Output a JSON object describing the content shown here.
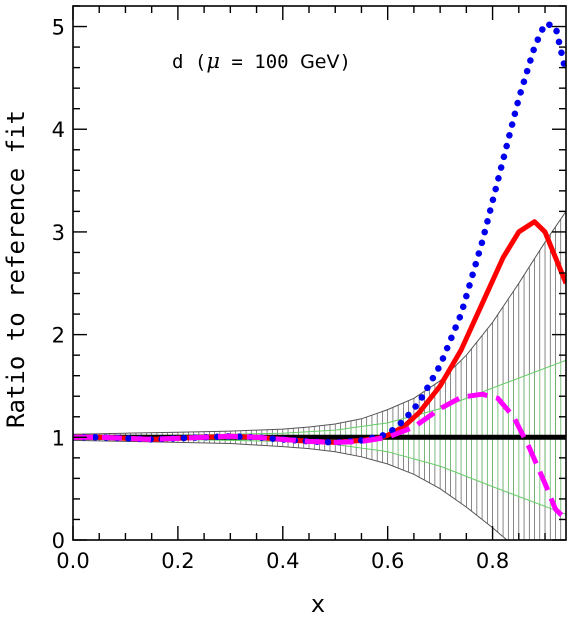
{
  "chart_data": {
    "type": "line",
    "xlabel": "x",
    "ylabel": "Ratio to reference fit",
    "annotation": {
      "prefix": "d (",
      "mu": "μ",
      "eq": " = 100 ",
      "unit": "GeV",
      "suffix": ")"
    },
    "xlim": [
      0.0,
      0.94
    ],
    "ylim": [
      0,
      5.2
    ],
    "x_ticks": [
      "0.0",
      "0.2",
      "0.4",
      "0.6",
      "0.8"
    ],
    "y_ticks": [
      "0",
      "1",
      "2",
      "3",
      "4",
      "5"
    ],
    "colors": {
      "reference": "#000000",
      "band_outer": "#555555",
      "band_inner": "#66cc66",
      "solid": "#ff0000",
      "dotted": "#0000ee",
      "dashed": "#ff00ff"
    },
    "band_outer": {
      "x": [
        0.0,
        0.1,
        0.2,
        0.3,
        0.4,
        0.45,
        0.5,
        0.55,
        0.6,
        0.65,
        0.7,
        0.75,
        0.8,
        0.85,
        0.9,
        0.94
      ],
      "upper": [
        1.03,
        1.04,
        1.05,
        1.06,
        1.08,
        1.1,
        1.13,
        1.18,
        1.27,
        1.38,
        1.55,
        1.8,
        2.12,
        2.5,
        2.9,
        3.2
      ],
      "lower": [
        0.97,
        0.96,
        0.95,
        0.94,
        0.91,
        0.89,
        0.86,
        0.81,
        0.74,
        0.64,
        0.5,
        0.32,
        0.12,
        -0.1,
        -0.3,
        -0.4
      ]
    },
    "band_inner": {
      "x": [
        0.0,
        0.2,
        0.4,
        0.5,
        0.6,
        0.7,
        0.8,
        0.94
      ],
      "upper": [
        1.01,
        1.02,
        1.04,
        1.07,
        1.14,
        1.28,
        1.48,
        1.75
      ],
      "lower": [
        0.99,
        0.98,
        0.96,
        0.93,
        0.86,
        0.72,
        0.52,
        0.25
      ]
    },
    "series": [
      {
        "style": "reference",
        "x": [
          0.0,
          0.94
        ],
        "values": [
          1.0,
          1.0
        ]
      },
      {
        "style": "solid",
        "x": [
          0.0,
          0.05,
          0.1,
          0.15,
          0.2,
          0.25,
          0.3,
          0.35,
          0.4,
          0.45,
          0.5,
          0.55,
          0.58,
          0.6,
          0.63,
          0.66,
          0.7,
          0.74,
          0.78,
          0.82,
          0.85,
          0.88,
          0.9,
          0.92,
          0.94
        ],
        "values": [
          1.0,
          1.0,
          0.99,
          0.98,
          0.99,
          1.0,
          1.01,
          1.0,
          0.98,
          0.96,
          0.95,
          0.97,
          0.99,
          1.02,
          1.1,
          1.24,
          1.5,
          1.85,
          2.3,
          2.75,
          3.0,
          3.1,
          3.0,
          2.75,
          2.5
        ]
      },
      {
        "style": "dotted",
        "x": [
          0.0,
          0.05,
          0.1,
          0.15,
          0.2,
          0.25,
          0.3,
          0.35,
          0.4,
          0.45,
          0.5,
          0.55,
          0.6,
          0.63,
          0.66,
          0.7,
          0.74,
          0.78,
          0.82,
          0.85,
          0.88,
          0.9,
          0.92,
          0.94
        ],
        "values": [
          1.0,
          1.0,
          0.99,
          0.98,
          0.99,
          1.0,
          1.01,
          1.0,
          0.98,
          0.96,
          0.95,
          0.97,
          1.03,
          1.16,
          1.34,
          1.7,
          2.2,
          2.9,
          3.7,
          4.3,
          4.8,
          5.03,
          5.0,
          4.55
        ]
      },
      {
        "style": "dashed",
        "x": [
          0.0,
          0.05,
          0.1,
          0.15,
          0.2,
          0.25,
          0.3,
          0.35,
          0.4,
          0.45,
          0.5,
          0.55,
          0.6,
          0.65,
          0.7,
          0.74,
          0.78,
          0.81,
          0.84,
          0.87,
          0.9,
          0.92,
          0.94
        ],
        "values": [
          1.0,
          1.0,
          0.99,
          0.98,
          0.99,
          1.0,
          1.01,
          1.0,
          0.98,
          0.96,
          0.95,
          0.96,
          1.0,
          1.1,
          1.28,
          1.39,
          1.42,
          1.38,
          1.2,
          0.9,
          0.55,
          0.3,
          0.2
        ]
      }
    ]
  }
}
